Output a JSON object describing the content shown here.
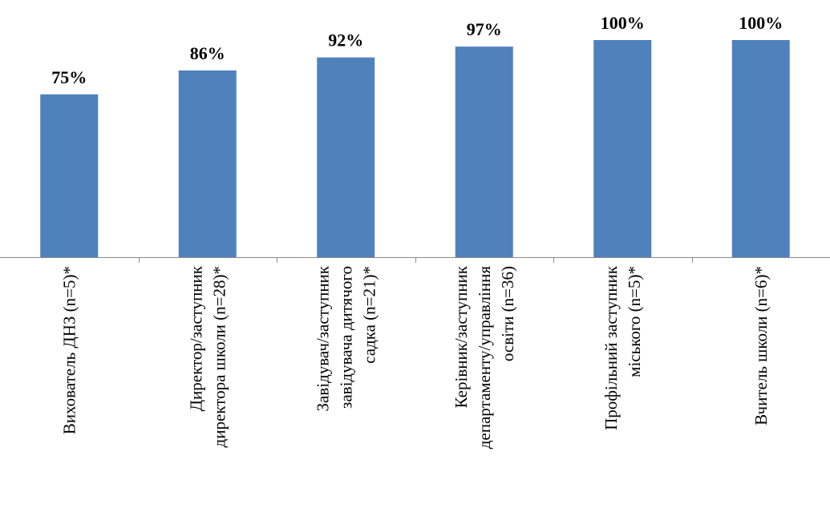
{
  "chart_data": {
    "type": "bar",
    "categories": [
      [
        "Вихователь ДНЗ (n=5)*"
      ],
      [
        "Директор/заступник",
        "директора школи (n=28)*"
      ],
      [
        "Завідувач/заступник",
        "завідувача дитячого",
        "садка (n=21)*"
      ],
      [
        "Керівник/заступник",
        "департаменту/управління",
        "освіти (n=36)"
      ],
      [
        "Профільний заступник",
        "міського (n=5)*"
      ],
      [
        "Вчитель школи (n=6)*"
      ]
    ],
    "values": [
      75,
      86,
      92,
      97,
      100,
      100
    ],
    "value_labels": [
      "75%",
      "86%",
      "92%",
      "97%",
      "100%",
      "100%"
    ],
    "unit": "%",
    "ylim": [
      0,
      100
    ],
    "grid": false,
    "legend": "none",
    "bar_color": "#4f81bd"
  }
}
